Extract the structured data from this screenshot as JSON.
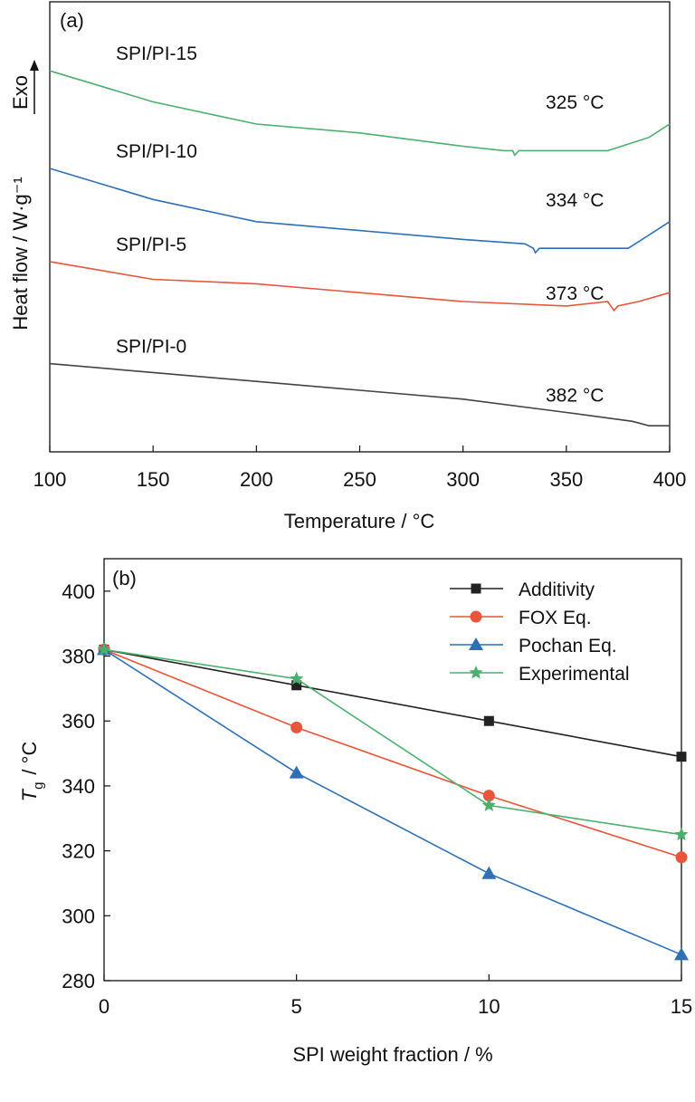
{
  "chart_data": [
    {
      "type": "line",
      "panel_label": "(a)",
      "xlabel": "Temperature / °C",
      "ylabel": "Heat flow / W·g⁻¹",
      "exo_label": "Exo",
      "xlim": [
        100,
        400
      ],
      "xticks": [
        "100",
        "150",
        "200",
        "250",
        "300",
        "350",
        "400"
      ],
      "yticks_shown": false,
      "series": [
        {
          "name": "SPI/PI-15",
          "color": "#4caf6e",
          "tg_label": "325 °C",
          "x": [
            100,
            150,
            200,
            250,
            300,
            320,
            324,
            325,
            327,
            340,
            370,
            390,
            400
          ],
          "y": [
            0.82,
            0.75,
            0.7,
            0.68,
            0.65,
            0.64,
            0.64,
            0.63,
            0.64,
            0.64,
            0.64,
            0.67,
            0.7
          ]
        },
        {
          "name": "SPI/PI-10",
          "color": "#2e6fb6",
          "tg_label": "334 °C",
          "x": [
            100,
            150,
            200,
            250,
            300,
            330,
            334,
            335,
            337,
            360,
            380,
            390,
            400
          ],
          "y": [
            0.6,
            0.53,
            0.48,
            0.46,
            0.44,
            0.43,
            0.42,
            0.41,
            0.42,
            0.42,
            0.42,
            0.45,
            0.48
          ]
        },
        {
          "name": "SPI/PI-5",
          "color": "#e8553a",
          "tg_label": "373 °C",
          "x": [
            100,
            150,
            200,
            250,
            300,
            350,
            370,
            373,
            375,
            385,
            400
          ],
          "y": [
            0.39,
            0.35,
            0.34,
            0.32,
            0.3,
            0.29,
            0.3,
            0.28,
            0.29,
            0.3,
            0.32
          ]
        },
        {
          "name": "SPI/PI-0",
          "color": "#444444",
          "tg_label": "382 °C",
          "x": [
            100,
            150,
            200,
            250,
            300,
            350,
            382,
            390,
            400
          ],
          "y": [
            0.16,
            0.14,
            0.12,
            0.1,
            0.08,
            0.05,
            0.03,
            0.02,
            0.02
          ]
        }
      ]
    },
    {
      "type": "line",
      "panel_label": "(b)",
      "xlabel": "SPI weight fraction / %",
      "ylabel_main": "T",
      "ylabel_sub": "g",
      "ylabel_unit": "/ °C",
      "xlim": [
        0,
        15
      ],
      "ylim": [
        280,
        410
      ],
      "xticks": [
        0,
        5,
        10,
        15
      ],
      "yticks": [
        280,
        300,
        320,
        340,
        360,
        380,
        400
      ],
      "legend_position": "top-right",
      "grid": false,
      "x": [
        0,
        5,
        10,
        15
      ],
      "series": [
        {
          "name": "Additivity",
          "color": "#222222",
          "marker": "square",
          "values": [
            382,
            371,
            360,
            349
          ]
        },
        {
          "name": "FOX Eq.",
          "color": "#e8553a",
          "marker": "circle",
          "values": [
            382,
            358,
            337,
            318
          ]
        },
        {
          "name": "Pochan Eq.",
          "color": "#2e6fb6",
          "marker": "triangle",
          "values": [
            382,
            344,
            313,
            288
          ]
        },
        {
          "name": "Experimental",
          "color": "#4caf6e",
          "marker": "star",
          "values": [
            382,
            373,
            334,
            325
          ]
        }
      ]
    }
  ]
}
